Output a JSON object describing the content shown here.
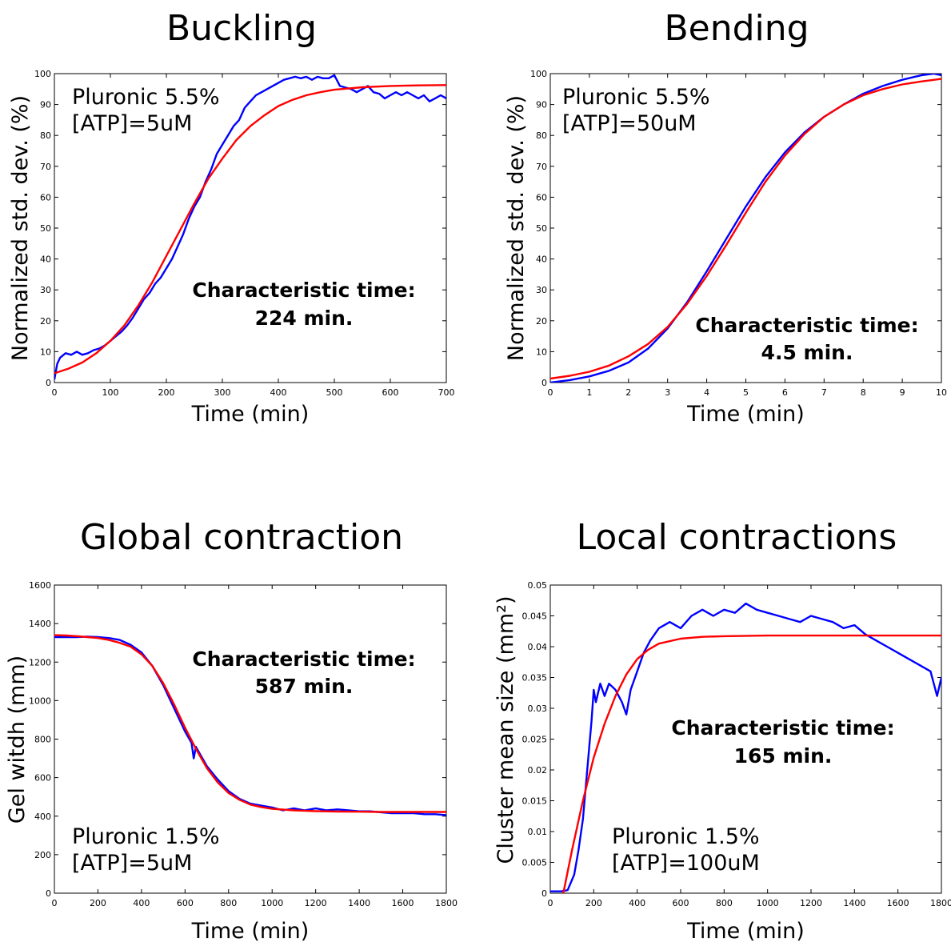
{
  "chart_data": [
    {
      "type": "line",
      "title": "Buckling",
      "xlabel": "Time (min)",
      "ylabel": "Normalized std. dev. (%)",
      "xlim": [
        0,
        700
      ],
      "ylim": [
        0,
        100
      ],
      "xticks": [
        "0",
        "100",
        "200",
        "300",
        "400",
        "500",
        "600",
        "700"
      ],
      "yticks": [
        "0",
        "10",
        "20",
        "30",
        "40",
        "50",
        "60",
        "70",
        "80",
        "90",
        "100"
      ],
      "condition": [
        "Pluronic 5.5%",
        "[ATP]=5uM"
      ],
      "result": [
        "Characteristic time:",
        "224 min."
      ],
      "series": [
        {
          "color": "#0000ff",
          "x": [
            0,
            5,
            10,
            20,
            30,
            40,
            50,
            60,
            70,
            80,
            90,
            100,
            110,
            120,
            130,
            140,
            150,
            160,
            170,
            180,
            190,
            200,
            210,
            220,
            230,
            240,
            250,
            260,
            270,
            280,
            290,
            300,
            310,
            320,
            330,
            340,
            350,
            360,
            370,
            380,
            390,
            400,
            410,
            420,
            430,
            440,
            450,
            460,
            470,
            480,
            490,
            500,
            510,
            520,
            530,
            540,
            550,
            560,
            570,
            580,
            590,
            600,
            610,
            620,
            630,
            640,
            650,
            660,
            670,
            680,
            690,
            700
          ],
          "y": [
            1,
            6,
            8,
            9.5,
            9,
            10,
            9,
            9.5,
            10.5,
            11,
            12,
            13.5,
            15,
            16.5,
            18.5,
            21,
            24,
            27,
            29,
            32,
            34,
            37,
            40,
            44,
            48,
            53,
            57,
            60,
            65,
            69,
            74,
            77,
            80,
            83,
            85,
            89,
            91,
            93,
            94,
            95,
            96,
            97,
            98,
            98.5,
            99,
            98.5,
            99,
            98,
            99,
            98.5,
            98.5,
            99.5,
            96,
            95.5,
            95,
            94,
            95,
            96,
            94,
            93.5,
            92,
            93,
            94,
            93,
            94,
            93,
            92,
            93,
            91,
            92,
            93,
            92
          ]
        },
        {
          "color": "#ff0000",
          "x": [
            0,
            25,
            50,
            75,
            100,
            125,
            150,
            175,
            200,
            225,
            250,
            275,
            300,
            325,
            350,
            375,
            400,
            425,
            450,
            475,
            500,
            550,
            600,
            650,
            700
          ],
          "y": [
            3,
            4.5,
            6.5,
            9.5,
            13.5,
            18.5,
            25,
            32.5,
            41,
            49.5,
            58,
            66,
            72.5,
            78.5,
            83,
            86.5,
            89.5,
            91.5,
            93,
            94,
            94.8,
            95.6,
            96,
            96.2,
            96.3
          ]
        }
      ]
    },
    {
      "type": "line",
      "title": "Bending",
      "xlabel": "Time (min)",
      "ylabel": "Normalized std. dev. (%)",
      "xlim": [
        0,
        10
      ],
      "ylim": [
        0,
        100
      ],
      "xticks": [
        "0",
        "1",
        "2",
        "3",
        "4",
        "5",
        "6",
        "7",
        "8",
        "9",
        "10"
      ],
      "yticks": [
        "0",
        "10",
        "20",
        "30",
        "40",
        "50",
        "60",
        "70",
        "80",
        "90",
        "100"
      ],
      "condition": [
        "Pluronic 5.5%",
        "[ATP]=50uM"
      ],
      "result": [
        "Characteristic time:",
        "4.5 min."
      ],
      "series": [
        {
          "color": "#0000ff",
          "x": [
            0,
            0.5,
            1,
            1.5,
            2,
            2.5,
            3,
            3.5,
            4,
            4.5,
            5,
            5.5,
            6,
            6.5,
            7,
            7.5,
            8,
            8.5,
            9,
            9.5,
            9.8,
            10
          ],
          "y": [
            0,
            0.8,
            2,
            3.8,
            6.5,
            11,
            17.5,
            26,
            36,
            46.5,
            57,
            66.5,
            74.5,
            81,
            86,
            90,
            93.5,
            96,
            98,
            99.5,
            100,
            99.5
          ]
        },
        {
          "color": "#ff0000",
          "x": [
            0,
            0.5,
            1,
            1.5,
            2,
            2.5,
            3,
            3.5,
            4,
            4.5,
            5,
            5.5,
            6,
            6.5,
            7,
            7.5,
            8,
            8.5,
            9,
            9.5,
            10
          ],
          "y": [
            1.3,
            2.2,
            3.5,
            5.5,
            8.5,
            12.5,
            18,
            25.5,
            34.5,
            44.5,
            55,
            65,
            73.5,
            80.5,
            86,
            90,
            93,
            95,
            96.5,
            97.5,
            98.3
          ]
        }
      ]
    },
    {
      "type": "line",
      "title": "Global contraction",
      "xlabel": "Time (min)",
      "ylabel": "Gel witdh (mm)",
      "xlim": [
        0,
        1800
      ],
      "ylim": [
        0,
        1600
      ],
      "xticks": [
        "0",
        "200",
        "400",
        "600",
        "800",
        "1000",
        "1200",
        "1400",
        "1600",
        "1800"
      ],
      "yticks": [
        "0",
        "200",
        "400",
        "600",
        "800",
        "1000",
        "1200",
        "1400",
        "1600"
      ],
      "condition": [
        "Pluronic 1.5%",
        "[ATP]=5uM"
      ],
      "result": [
        "Characteristic time:",
        "587 min."
      ],
      "series": [
        {
          "color": "#0000ff",
          "x": [
            0,
            50,
            100,
            150,
            200,
            250,
            300,
            350,
            400,
            450,
            500,
            550,
            600,
            630,
            640,
            650,
            700,
            750,
            800,
            850,
            900,
            950,
            1000,
            1050,
            1100,
            1150,
            1200,
            1250,
            1300,
            1350,
            1400,
            1450,
            1500,
            1550,
            1600,
            1650,
            1700,
            1750,
            1800
          ],
          "y": [
            1330,
            1330,
            1330,
            1332,
            1330,
            1325,
            1315,
            1290,
            1250,
            1180,
            1080,
            960,
            840,
            780,
            700,
            760,
            660,
            590,
            530,
            490,
            465,
            455,
            445,
            430,
            440,
            430,
            440,
            430,
            435,
            430,
            425,
            425,
            420,
            415,
            415,
            415,
            410,
            410,
            405
          ]
        },
        {
          "color": "#ff0000",
          "x": [
            0,
            50,
            100,
            150,
            200,
            250,
            300,
            350,
            400,
            450,
            500,
            550,
            600,
            650,
            700,
            750,
            800,
            850,
            900,
            950,
            1000,
            1100,
            1200,
            1300,
            1400,
            1500,
            1600,
            1700,
            1800
          ],
          "y": [
            1340,
            1338,
            1335,
            1330,
            1325,
            1315,
            1300,
            1280,
            1240,
            1180,
            1090,
            980,
            860,
            750,
            650,
            575,
            520,
            485,
            460,
            447,
            438,
            430,
            426,
            424,
            423,
            422,
            422,
            422,
            422
          ]
        }
      ]
    },
    {
      "type": "line",
      "title": "Local contractions",
      "xlabel": "Time (min)",
      "ylabel": "Cluster mean size (mm²)",
      "xlim": [
        0,
        1800
      ],
      "ylim": [
        0,
        0.05
      ],
      "xticks": [
        "0",
        "200",
        "400",
        "600",
        "800",
        "1000",
        "1200",
        "1400",
        "1600",
        "1800"
      ],
      "yticks": [
        "0",
        "0.005",
        "0.01",
        "0.015",
        "0.02",
        "0.025",
        "0.03",
        "0.035",
        "0.04",
        "0.045",
        "0.05"
      ],
      "condition": [
        "Pluronic 1.5%",
        "[ATP]=100uM"
      ],
      "result": [
        "Characteristic time:",
        "165 min."
      ],
      "series": [
        {
          "color": "#0000ff",
          "x": [
            0,
            50,
            80,
            110,
            130,
            150,
            170,
            190,
            200,
            210,
            230,
            250,
            270,
            300,
            330,
            350,
            370,
            400,
            430,
            460,
            500,
            550,
            600,
            650,
            700,
            750,
            800,
            850,
            900,
            950,
            1000,
            1050,
            1100,
            1150,
            1200,
            1250,
            1300,
            1350,
            1400,
            1450,
            1500,
            1550,
            1600,
            1650,
            1700,
            1750,
            1780,
            1800
          ],
          "y": [
            0.0003,
            0.0003,
            0.0005,
            0.003,
            0.007,
            0.012,
            0.02,
            0.028,
            0.033,
            0.031,
            0.034,
            0.032,
            0.034,
            0.033,
            0.031,
            0.029,
            0.033,
            0.036,
            0.039,
            0.041,
            0.043,
            0.044,
            0.043,
            0.045,
            0.046,
            0.045,
            0.046,
            0.0455,
            0.047,
            0.046,
            0.0455,
            0.045,
            0.0445,
            0.044,
            0.045,
            0.0445,
            0.044,
            0.043,
            0.0435,
            0.042,
            0.041,
            0.04,
            0.039,
            0.038,
            0.037,
            0.036,
            0.032,
            0.035
          ]
        },
        {
          "color": "#ff0000",
          "x": [
            60,
            100,
            150,
            200,
            250,
            300,
            350,
            400,
            450,
            500,
            600,
            700,
            800,
            1000,
            1200,
            1400,
            1600,
            1800
          ],
          "y": [
            0,
            0.007,
            0.015,
            0.022,
            0.0275,
            0.032,
            0.0355,
            0.038,
            0.0395,
            0.0405,
            0.0413,
            0.0416,
            0.0417,
            0.0418,
            0.0418,
            0.0418,
            0.0418,
            0.0418
          ]
        }
      ]
    }
  ]
}
